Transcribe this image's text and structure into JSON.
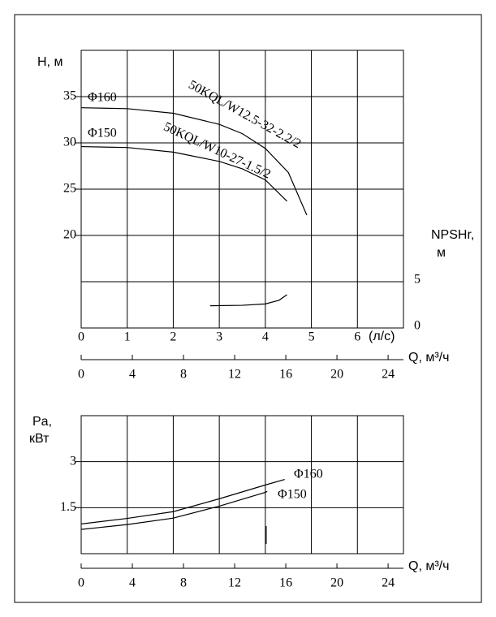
{
  "chart_data": [
    {
      "type": "line",
      "ylabel": "H, м",
      "y2label": "NPSHr,",
      "y2unit": "м",
      "xunit": "(л/с)",
      "x2label": "Q, м³/ч",
      "xlim": [
        0,
        7
      ],
      "xticks": [
        0,
        1,
        2,
        3,
        4,
        5,
        6
      ],
      "x2lim": [
        0,
        25.2
      ],
      "x2ticks": [
        0,
        4,
        8,
        12,
        16,
        20,
        24
      ],
      "ylim": [
        10,
        40
      ],
      "yticks": [
        20,
        25,
        30,
        35
      ],
      "y2lim": [
        0,
        30
      ],
      "y2ticks": [
        0,
        5
      ],
      "annotations": [
        "50KQL/W12.5-32-2.2/2",
        "50KQL/W10-27-1.5/2"
      ],
      "series": [
        {
          "name": "Φ160",
          "color": "#000000",
          "x": [
            0,
            1,
            2,
            3,
            3.5,
            4,
            4.5,
            4.9
          ],
          "values": [
            33.8,
            33.7,
            33.2,
            32.0,
            31.0,
            29.4,
            26.8,
            22.2
          ]
        },
        {
          "name": "Φ150",
          "color": "#000000",
          "x": [
            0,
            1,
            2,
            3,
            3.5,
            4,
            4.47
          ],
          "values": [
            29.6,
            29.5,
            29.0,
            28.0,
            27.2,
            26.0,
            23.7
          ]
        },
        {
          "color": "#000000",
          "axis": "y2",
          "x": [
            2.8,
            3.5,
            4,
            4.3,
            4.47
          ],
          "values": [
            2.4,
            2.45,
            2.6,
            3.0,
            3.6
          ]
        }
      ]
    },
    {
      "type": "line",
      "ylabel": "Pa,",
      "yunit": "кВт",
      "x2label": "Q, м³/ч",
      "xlim": [
        0,
        7
      ],
      "x2lim": [
        0,
        25.2
      ],
      "x2ticks": [
        0,
        4,
        8,
        12,
        16,
        20,
        24
      ],
      "ylim": [
        0,
        4.5
      ],
      "yticks": [
        1.5,
        3
      ],
      "series": [
        {
          "name": "Φ160",
          "color": "#000000",
          "x": [
            0,
            1,
            2,
            3,
            4,
            4.42
          ],
          "values": [
            0.97,
            1.15,
            1.37,
            1.79,
            2.24,
            2.42
          ]
        },
        {
          "name": "Φ150",
          "color": "#000000",
          "x": [
            0,
            1,
            2,
            3,
            4,
            4.04
          ],
          "values": [
            0.79,
            0.95,
            1.16,
            1.55,
            2.0,
            2.03
          ]
        }
      ]
    }
  ]
}
